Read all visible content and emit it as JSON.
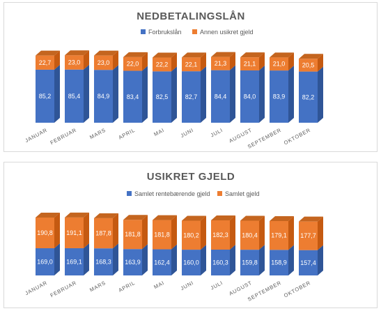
{
  "chart_data": [
    {
      "type": "bar",
      "stacked": true,
      "style": "3d-column",
      "title": "NEDBETALINGSLÅN",
      "categories": [
        "JANUAR",
        "FEBRUAR",
        "MARS",
        "APRIL",
        "MAI",
        "JUNI",
        "JULI",
        "AUGUST",
        "SEPTEMBER",
        "OKTOBER"
      ],
      "series": [
        {
          "name": "Forbrukslån",
          "color": "#4472c4",
          "side_color": "#2f5597",
          "top_color": "#5b84cf",
          "values": [
            85.2,
            85.4,
            84.9,
            83.4,
            82.5,
            82.7,
            84.4,
            84.0,
            83.9,
            82.2
          ],
          "labels": [
            "85,2",
            "85,4",
            "84,9",
            "83,4",
            "82,5",
            "82,7",
            "84,4",
            "84,0",
            "83,9",
            "82,2"
          ]
        },
        {
          "name": "Annen usikret gjeld",
          "color": "#ed7d31",
          "side_color": "#c55a11",
          "top_color": "#c4651f",
          "values": [
            22.7,
            23.0,
            23.0,
            22.0,
            22.2,
            22.1,
            21.3,
            21.1,
            21.0,
            20.5
          ],
          "labels": [
            "22,7",
            "23,0",
            "23,0",
            "22,0",
            "22,2",
            "22,1",
            "21,3",
            "21,1",
            "21,0",
            "20,5"
          ]
        }
      ],
      "legend": "top-center",
      "ylim": [
        0,
        112
      ],
      "grid": false
    },
    {
      "type": "bar",
      "stacked": true,
      "style": "3d-column",
      "title": "USIKRET GJELD",
      "categories": [
        "JANUAR",
        "FEBRUAR",
        "MARS",
        "APRIL",
        "MAI",
        "JUNI",
        "JULI",
        "AUGUST",
        "SEPTEMBER",
        "OKTOBER"
      ],
      "series": [
        {
          "name": "Samlet rentebærende gjeld",
          "color": "#4472c4",
          "side_color": "#2f5597",
          "top_color": "#5b84cf",
          "values": [
            169.0,
            169.1,
            168.3,
            163.9,
            162.4,
            160.0,
            160.3,
            159.8,
            158.9,
            157.4
          ],
          "labels": [
            "169,0",
            "169,1",
            "168,3",
            "163,9",
            "162,4",
            "160,0",
            "160,3",
            "159,8",
            "158,9",
            "157,4"
          ]
        },
        {
          "name": "Samlet gjeld",
          "color": "#ed7d31",
          "side_color": "#c55a11",
          "top_color": "#c4651f",
          "values": [
            190.8,
            191.1,
            187.8,
            181.8,
            181.8,
            180.2,
            182.3,
            180.4,
            179.1,
            177.7
          ],
          "labels": [
            "190,8",
            "191,1",
            "187,8",
            "181,8",
            "181,8",
            "180,2",
            "182,3",
            "180,4",
            "179,1",
            "177,7"
          ]
        }
      ],
      "legend": "top-center",
      "ylim": [
        0,
        390
      ],
      "grid": false
    }
  ]
}
